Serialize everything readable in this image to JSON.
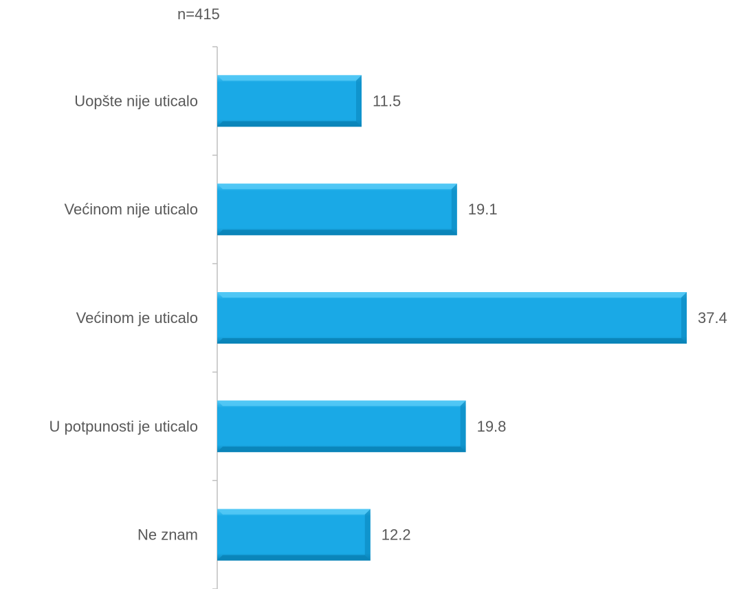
{
  "note": "n=415",
  "chart_data": {
    "type": "bar",
    "orientation": "horizontal",
    "title": "",
    "xlabel": "",
    "ylabel": "",
    "categories": [
      "Uopšte nije uticalo",
      "Većinom nije uticalo",
      "Većinom je uticalo",
      "U potpunosti je uticalo",
      "Ne znam"
    ],
    "values": [
      11.5,
      19.1,
      37.4,
      19.8,
      12.2
    ],
    "data_labels": [
      "11.5",
      "19.1",
      "37.4",
      "19.8",
      "12.2"
    ],
    "xlim": [
      0,
      37.4
    ],
    "grid": false,
    "legend": "none",
    "colors": {
      "bar": "#1aa9e6",
      "bar_top": "#52c8f5",
      "bar_bottom": "#0a84b8",
      "axis": "#bfbfbf",
      "text": "#595959"
    }
  }
}
